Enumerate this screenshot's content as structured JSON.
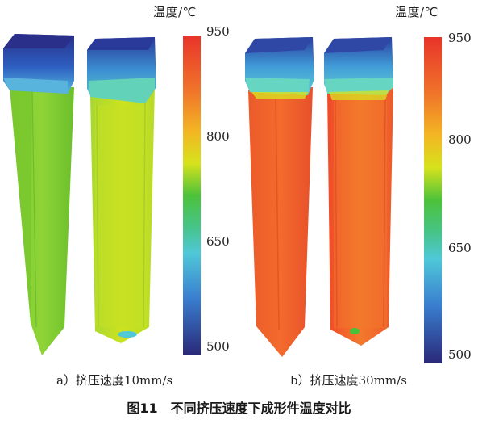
{
  "panels": [
    {
      "id": "a",
      "unit_label": "温度/℃",
      "ticks": [
        "950",
        "800",
        "650",
        "500"
      ],
      "colorbar_range": [
        500,
        950
      ],
      "caption": "a）挤压速度10mm/s"
    },
    {
      "id": "b",
      "unit_label": "温度/℃",
      "ticks": [
        "950",
        "800",
        "650",
        "500"
      ],
      "colorbar_range": [
        500,
        950
      ],
      "caption": "b）挤压速度30mm/s"
    }
  ],
  "figure_caption": "图11　不同挤压速度下成形件温度对比",
  "colors": {
    "scale_top": "#e8342a",
    "scale_orange": "#f39a1f",
    "scale_yellow": "#d6e21c",
    "scale_green": "#3cc23a",
    "scale_cyan": "#4fc8d8",
    "scale_blue": "#2a52b8",
    "scale_bottom": "#2a2878"
  }
}
